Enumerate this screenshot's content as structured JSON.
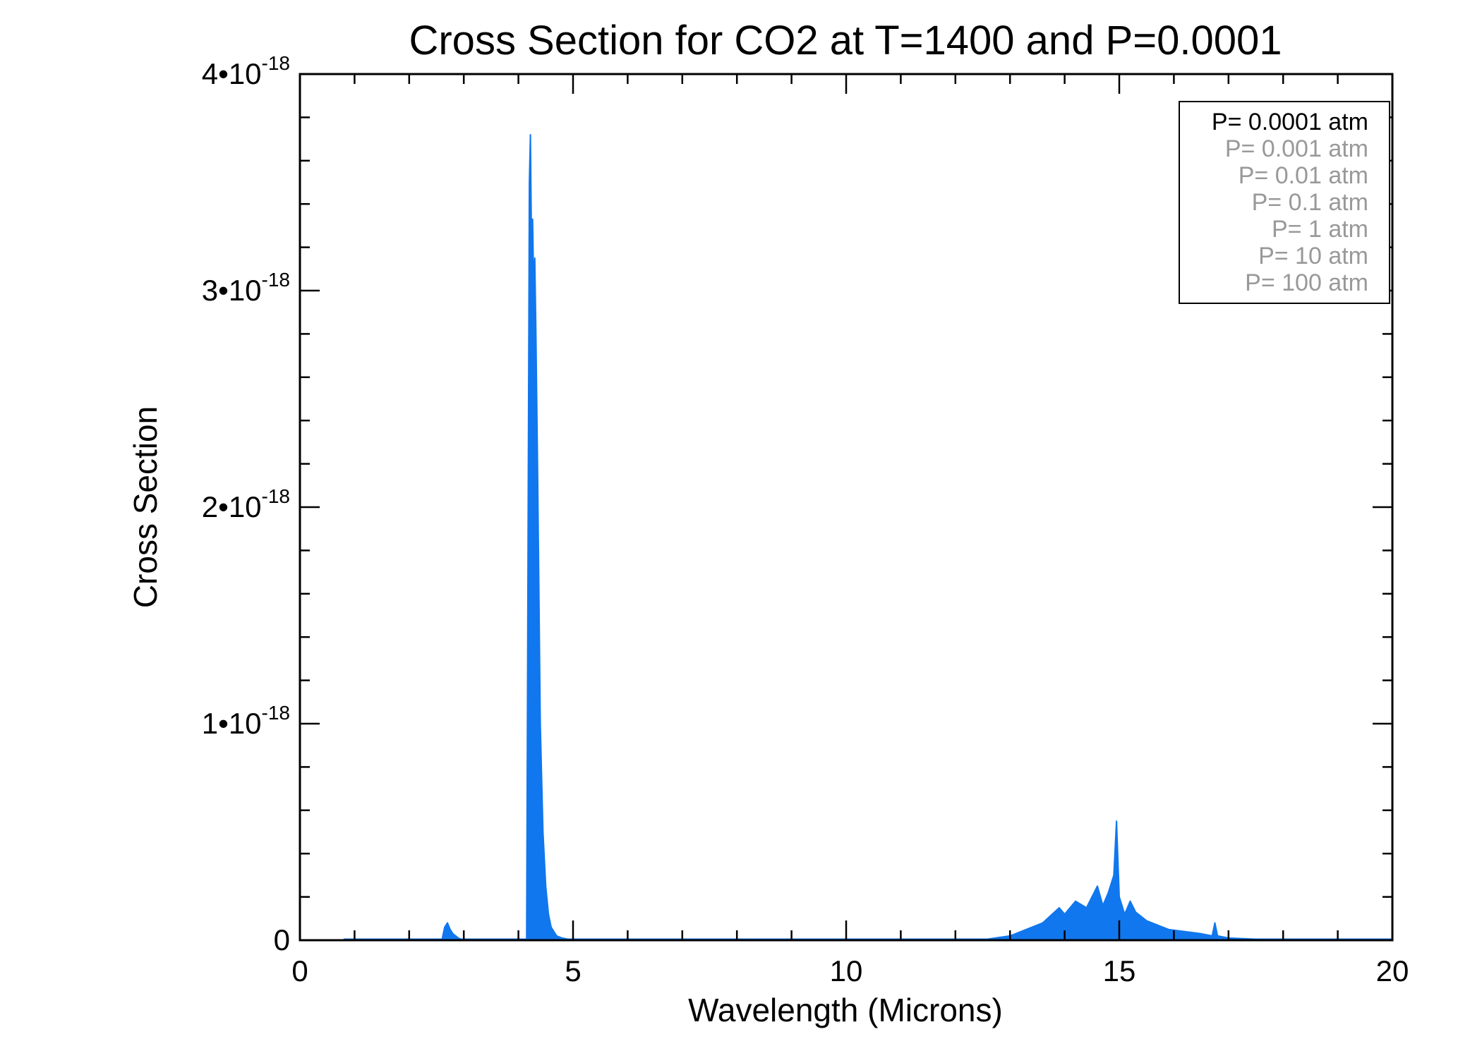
{
  "chart_data": {
    "type": "line",
    "title": "Cross Section for CO2 at T=1400 and P=0.0001",
    "xlabel": "Wavelength (Microns)",
    "ylabel": "Cross Section",
    "xlim": [
      0,
      20
    ],
    "ylim": [
      0,
      4e-18
    ],
    "grid": false,
    "x_ticks": [
      {
        "value": 0,
        "label": "0"
      },
      {
        "value": 5,
        "label": "5"
      },
      {
        "value": 10,
        "label": "10"
      },
      {
        "value": 15,
        "label": "15"
      },
      {
        "value": 20,
        "label": "20"
      }
    ],
    "y_ticks": [
      {
        "value": 0,
        "mantissa": "0",
        "exponent": ""
      },
      {
        "value": 1e-18,
        "mantissa": "1•10",
        "exponent": "-18"
      },
      {
        "value": 2e-18,
        "mantissa": "2•10",
        "exponent": "-18"
      },
      {
        "value": 3e-18,
        "mantissa": "3•10",
        "exponent": "-18"
      },
      {
        "value": 4e-18,
        "mantissa": "4•10",
        "exponent": "-18"
      }
    ],
    "legend_position": "top-right",
    "legend": [
      {
        "label": "P= 0.0001 atm",
        "color": "#000000"
      },
      {
        "label": "P= 0.001 atm",
        "color": "#999999"
      },
      {
        "label": "P= 0.01 atm",
        "color": "#999999"
      },
      {
        "label": "P= 0.1 atm",
        "color": "#999999"
      },
      {
        "label": "P= 1 atm",
        "color": "#999999"
      },
      {
        "label": "P= 10 atm",
        "color": "#999999"
      },
      {
        "label": "P= 100 atm",
        "color": "#999999"
      }
    ],
    "series": [
      {
        "name": "P= 0.0001 atm",
        "color": "#1177ee",
        "x": [
          0.8,
          2.6,
          2.65,
          2.7,
          2.75,
          2.8,
          2.9,
          3.0,
          4.15,
          4.2,
          4.22,
          4.24,
          4.26,
          4.28,
          4.3,
          4.32,
          4.35,
          4.38,
          4.4,
          4.45,
          4.5,
          4.55,
          4.6,
          4.7,
          4.8,
          5.0,
          10.0,
          12.5,
          13.0,
          13.3,
          13.6,
          13.9,
          14.0,
          14.2,
          14.4,
          14.5,
          14.6,
          14.7,
          14.8,
          14.9,
          14.95,
          15.0,
          15.1,
          15.2,
          15.3,
          15.5,
          15.7,
          15.9,
          16.2,
          16.5,
          16.7,
          16.75,
          16.8,
          17.0,
          17.5,
          18.0,
          20.0
        ],
        "y": [
          0,
          0,
          6e-20,
          8e-20,
          5e-20,
          3e-20,
          1e-20,
          0,
          0,
          3.5e-18,
          3.72e-18,
          3.2e-18,
          3.33e-18,
          3e-18,
          3.15e-18,
          2.8e-18,
          2.2e-18,
          1.5e-18,
          1e-18,
          5e-19,
          2.5e-19,
          1.2e-19,
          6e-20,
          2e-20,
          1e-20,
          0,
          0,
          2e-21,
          2e-20,
          5e-20,
          8e-20,
          1.5e-19,
          1.2e-19,
          1.8e-19,
          1.5e-19,
          2e-19,
          2.5e-19,
          1.6e-19,
          2.2e-19,
          3e-19,
          5.5e-19,
          2e-19,
          1.2e-19,
          1.8e-19,
          1.3e-19,
          9e-20,
          7e-20,
          5e-20,
          4e-20,
          3e-20,
          2e-20,
          8e-20,
          2e-20,
          1e-20,
          5e-21,
          2e-21,
          0
        ]
      }
    ]
  }
}
